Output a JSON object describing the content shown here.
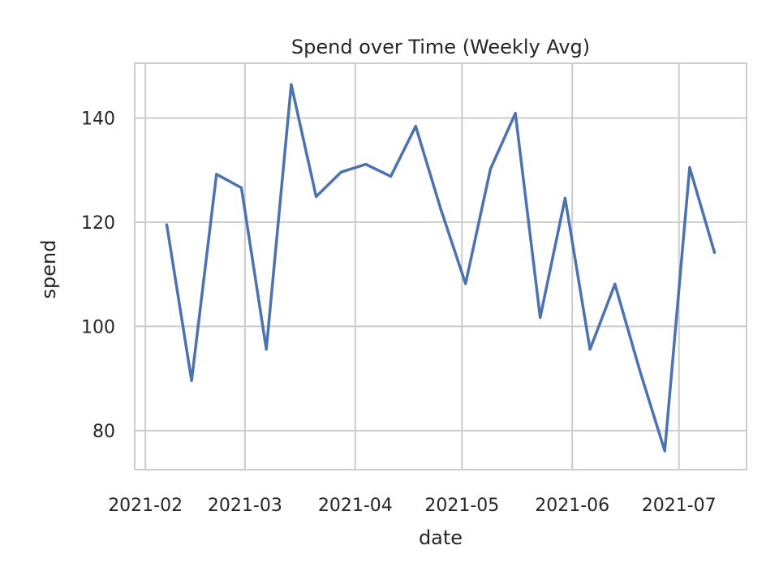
{
  "chart_data": {
    "type": "line",
    "title": "Spend over Time (Weekly Avg)",
    "xlabel": "date",
    "ylabel": "spend",
    "x_tick_labels": [
      "2021-02",
      "2021-03",
      "2021-04",
      "2021-05",
      "2021-06",
      "2021-07"
    ],
    "y_tick_values": [
      80,
      100,
      120,
      140
    ],
    "ylim": [
      72.5,
      150.5
    ],
    "xlim": [
      "2021-01-29",
      "2021-07-20"
    ],
    "grid": true,
    "line_color": "#4c72b0",
    "grid_color": "#cccccc",
    "series": [
      {
        "x": [
          "2021-02-07",
          "2021-02-14",
          "2021-02-21",
          "2021-02-28",
          "2021-03-07",
          "2021-03-14",
          "2021-03-21",
          "2021-03-28",
          "2021-04-04",
          "2021-04-11",
          "2021-04-18",
          "2021-04-25",
          "2021-05-02",
          "2021-05-09",
          "2021-05-16",
          "2021-05-23",
          "2021-05-30",
          "2021-06-06",
          "2021-06-13",
          "2021-06-20",
          "2021-06-27",
          "2021-07-04",
          "2021-07-11"
        ],
        "y": [
          119.5,
          89.6,
          129.2,
          126.6,
          95.6,
          146.4,
          124.9,
          129.6,
          131.1,
          128.8,
          138.4,
          122.6,
          108.2,
          130.2,
          140.9,
          101.7,
          124.6,
          95.6,
          108.1,
          91.5,
          76.1,
          130.5,
          114.2
        ]
      }
    ]
  }
}
